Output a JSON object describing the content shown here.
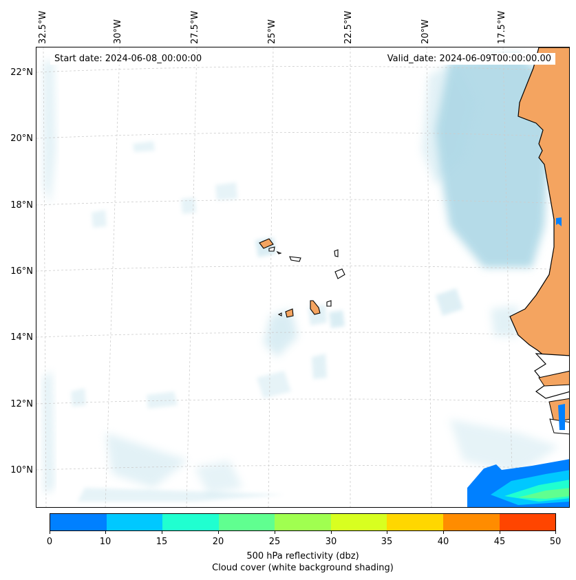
{
  "map": {
    "start_date": "Start date: 2024-06-08_00:00:00",
    "valid_date": "Valid_date: 2024-06-09T00:00:00.00",
    "lon_labels": [
      "32.5°W",
      "30°W",
      "27.5°W",
      "25°W",
      "22.5°W",
      "20°W",
      "17.5°W"
    ],
    "lat_labels": [
      "22°N",
      "20°N",
      "18°N",
      "16°N",
      "14°N",
      "12°N",
      "10°N"
    ],
    "colors": {
      "land": "#f4a460",
      "cloud": "#add8e6",
      "coast": "#000000",
      "grid": "#cccccc"
    }
  },
  "colorbar": {
    "ticks": [
      "0",
      "10",
      "15",
      "20",
      "25",
      "30",
      "35",
      "40",
      "45",
      "50"
    ],
    "colors": [
      "#0080ff",
      "#00c8ff",
      "#20ffd0",
      "#60ff90",
      "#a0ff50",
      "#d8ff20",
      "#ffd700",
      "#ff8c00",
      "#ff4500"
    ],
    "label_line1": "500 hPa reflectivity (dbz)",
    "label_line2": "Cloud cover (white background shading)"
  }
}
